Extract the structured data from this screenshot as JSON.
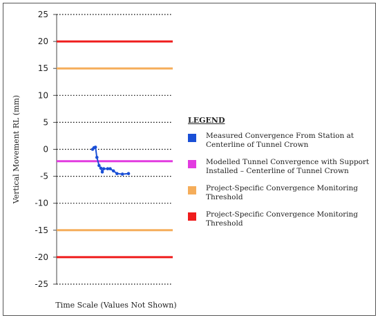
{
  "chart_data": {
    "type": "line",
    "xlabel": "Time Scale (Values Not Shown)",
    "ylabel": "Vertical Movement RL (mm)",
    "ylim": [
      -25,
      25
    ],
    "yticks": [
      25,
      20,
      15,
      10,
      5,
      0,
      -5,
      -10,
      -15,
      -20,
      -25
    ],
    "grid": true,
    "legend_position": "right",
    "legend_title": "LEGEND",
    "series": [
      {
        "name": "Measured Convergence From Station at Centerline of Tunnel Crown",
        "color": "#1a4fd6",
        "style": "line-markers",
        "points": [
          [
            0.0,
            0.0
          ],
          [
            0.4,
            0.3
          ],
          [
            0.8,
            0.4
          ],
          [
            1.2,
            -1.5
          ],
          [
            1.8,
            -3.0
          ],
          [
            2.3,
            -3.5
          ],
          [
            2.7,
            -4.2
          ],
          [
            3.1,
            -3.6
          ],
          [
            4.2,
            -3.6
          ],
          [
            4.9,
            -3.6
          ],
          [
            5.8,
            -4.0
          ],
          [
            6.8,
            -4.5
          ],
          [
            8.3,
            -4.6
          ],
          [
            10.0,
            -4.5
          ]
        ]
      },
      {
        "name": "Modelled Tunnel Convergence with Support Installed – Centerline of Tunnel Crown",
        "color": "#e23be0",
        "style": "hline",
        "values": [
          -2.2
        ]
      },
      {
        "name": "Project-Specific Convergence Monitoring Threshold",
        "color": "#f5ad5a",
        "style": "hline",
        "values": [
          15,
          -15
        ]
      },
      {
        "name": "Project-Specific Convergence Monitoring Threshold",
        "color": "#ef1c1c",
        "style": "hline",
        "values": [
          20,
          -20
        ]
      }
    ]
  }
}
